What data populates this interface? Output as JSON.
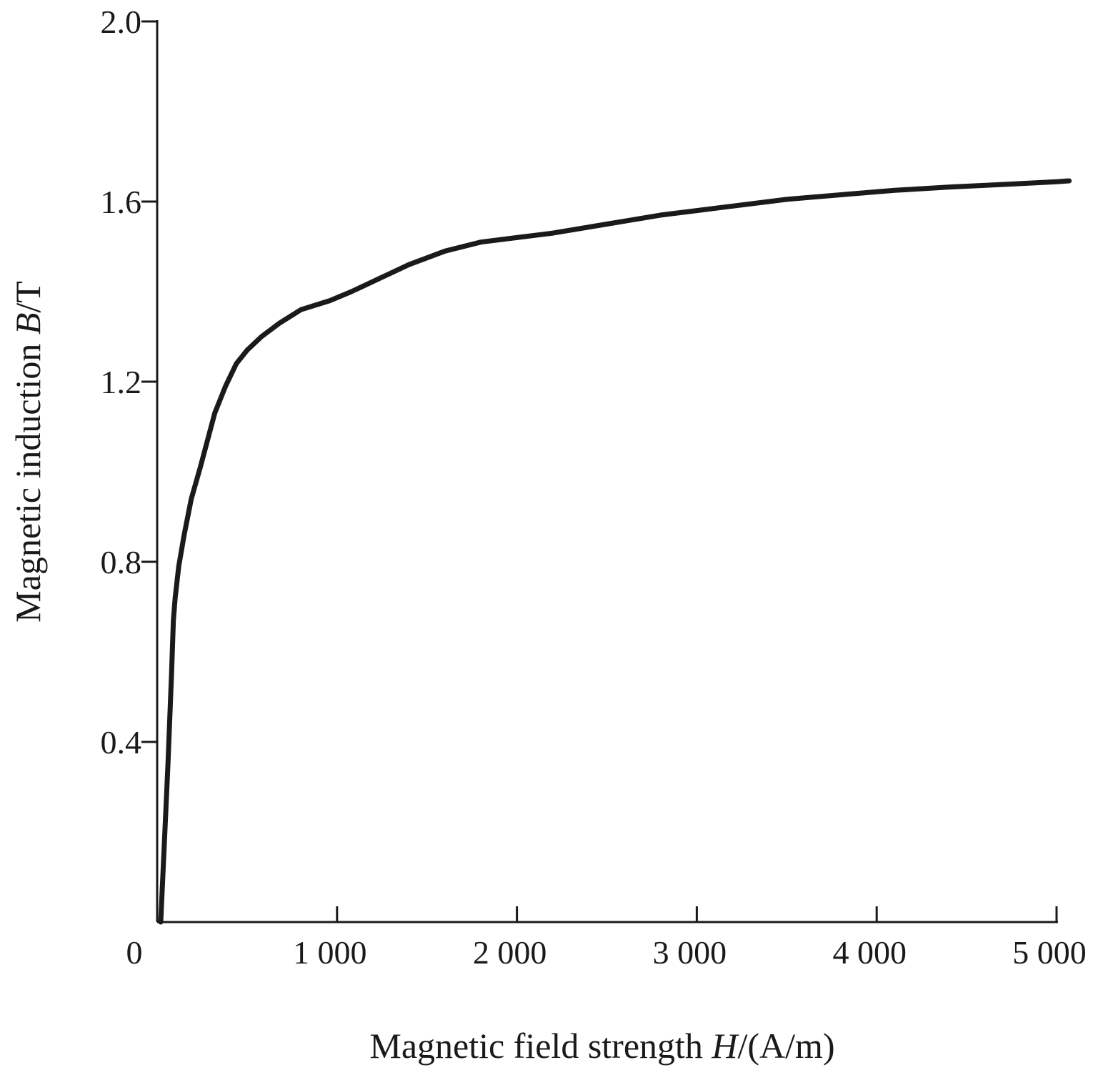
{
  "chart_data": {
    "type": "line",
    "title": "",
    "xlabel": {
      "prefix": "Magnetic field strength ",
      "symbol": "H",
      "suffix": "/(A/m)"
    },
    "ylabel": {
      "prefix": "Magnetic induction ",
      "symbol": "B",
      "suffix": "/T"
    },
    "xlim": [
      0,
      5000
    ],
    "ylim": [
      0,
      2.0
    ],
    "origin_label": "0",
    "xticks": [
      {
        "value": 1000,
        "label": "1 000"
      },
      {
        "value": 2000,
        "label": "2 000"
      },
      {
        "value": 3000,
        "label": "3 000"
      },
      {
        "value": 4000,
        "label": "4 000"
      },
      {
        "value": 5000,
        "label": "5 000"
      }
    ],
    "yticks": [
      {
        "value": 0.4,
        "label": "0.4"
      },
      {
        "value": 0.8,
        "label": "0.8"
      },
      {
        "value": 1.2,
        "label": "1.2"
      },
      {
        "value": 1.6,
        "label": "1.6"
      },
      {
        "value": 2.0,
        "label": "2.0"
      }
    ],
    "grid": false,
    "legend": "none",
    "line_color": "#1a1a1a",
    "series": [
      {
        "x": [
          20,
          60,
          80,
          90,
          100,
          120,
          150,
          190,
          240,
          280,
          320,
          380,
          440,
          500,
          580,
          680,
          800,
          960,
          1080,
          1240,
          1400,
          1600,
          1800,
          2000,
          2200,
          2500,
          2800,
          3000,
          3200,
          3500,
          3800,
          4100,
          4400,
          4700,
          5000,
          5070
        ],
        "y": [
          0.0,
          0.35,
          0.55,
          0.67,
          0.72,
          0.79,
          0.86,
          0.94,
          1.01,
          1.07,
          1.13,
          1.19,
          1.24,
          1.27,
          1.3,
          1.33,
          1.36,
          1.38,
          1.4,
          1.43,
          1.46,
          1.49,
          1.51,
          1.52,
          1.53,
          1.55,
          1.57,
          1.58,
          1.59,
          1.605,
          1.615,
          1.625,
          1.632,
          1.638,
          1.644,
          1.646
        ]
      }
    ]
  }
}
